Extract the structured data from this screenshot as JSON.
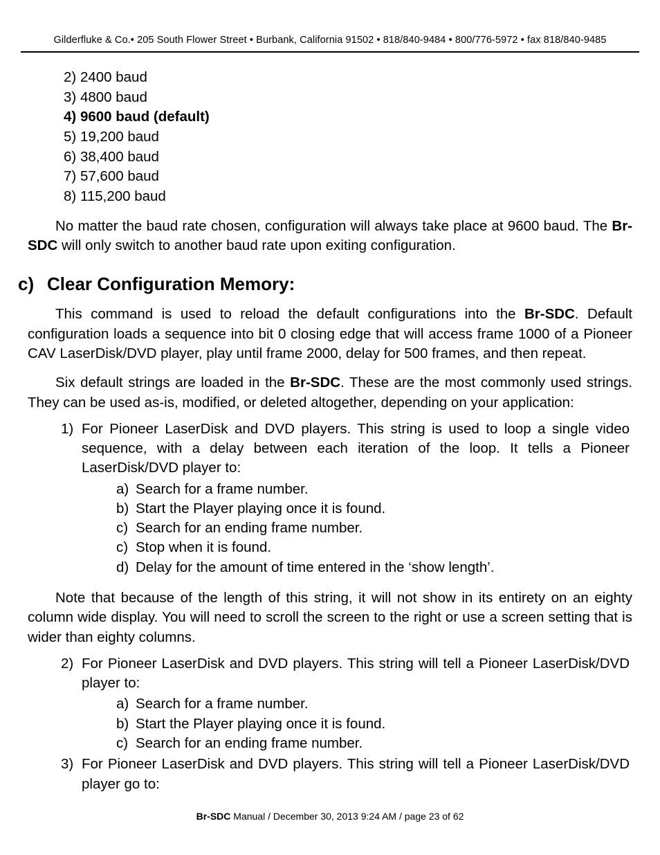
{
  "header": {
    "text": "Gilderfluke & Co.• 205 South Flower Street • Burbank, California 91502 • 818/840-9484 • 800/776-5972 • fax 818/840-9485"
  },
  "baud_items": [
    {
      "marker": "2)",
      "label": "2400 baud",
      "bold": false
    },
    {
      "marker": "3)",
      "label": "4800 baud",
      "bold": false
    },
    {
      "marker": "4)",
      "label": "9600 baud (default)",
      "bold": true
    },
    {
      "marker": "5)",
      "label": "19,200 baud",
      "bold": false
    },
    {
      "marker": "6)",
      "label": "38,400 baud",
      "bold": false
    },
    {
      "marker": "7)",
      "label": "57,600 baud",
      "bold": false
    },
    {
      "marker": "8)",
      "label": "115,200 baud",
      "bold": false
    }
  ],
  "para1": {
    "pre": "No matter the baud rate chosen, configuration will always take place at 9600 baud. The ",
    "bold": "Br-SDC",
    "post": " will only switch to another baud rate upon exiting configuration."
  },
  "section": {
    "letter": "c)",
    "title": "Clear Configuration Memory:"
  },
  "para2": {
    "pre": "This command is used to reload the default configurations into the ",
    "bold": "Br-SDC",
    "post": ". Default configuration loads a sequence into bit 0 closing edge that will access frame 1000 of a Pioneer CAV LaserDisk/DVD player, play until frame 2000, delay for 500 frames, and then repeat."
  },
  "para3": {
    "pre": "Six default strings are loaded in the ",
    "bold": "Br-SDC",
    "post": ". These are the most commonly used strings. They can be used as-is, modified, or deleted altogether, depending on your application:"
  },
  "item1": {
    "marker": "1)",
    "text": "For Pioneer LaserDisk and DVD players. This string is used to loop a single video sequence, with a delay between each iteration of the loop. It tells a Pioneer LaserDisk/DVD player to:"
  },
  "item1_sub": [
    {
      "marker": "a)",
      "text": "Search for a frame number."
    },
    {
      "marker": "b)",
      "text": "Start the Player playing once it is found."
    },
    {
      "marker": "c)",
      "text": "Search for an ending frame number."
    },
    {
      "marker": "c)",
      "text": "Stop when it is found."
    },
    {
      "marker": "d)",
      "text": "Delay for the amount of time entered in the ‘show length’."
    }
  ],
  "para4": {
    "text": "Note that because of the length of this string, it will not show in its entirety on an eighty column wide display. You will need to scroll the screen to the right or use a screen setting that is wider than eighty columns."
  },
  "item2": {
    "marker": "2)",
    "text": "For Pioneer LaserDisk and DVD players. This string will tell a Pioneer LaserDisk/DVD player to:"
  },
  "item2_sub": [
    {
      "marker": "a)",
      "text": "Search for a frame number."
    },
    {
      "marker": "b)",
      "text": "Start the Player playing once it is found."
    },
    {
      "marker": "c)",
      "text": "Search for an ending frame number."
    }
  ],
  "item3": {
    "marker": "3)",
    "text": "For Pioneer LaserDisk and DVD players. This string will tell a Pioneer LaserDisk/DVD player go to:"
  },
  "footer": {
    "bold": "Br-SDC",
    "rest": " Manual / December 30, 2013 9:24 AM / page 23 of 62"
  }
}
